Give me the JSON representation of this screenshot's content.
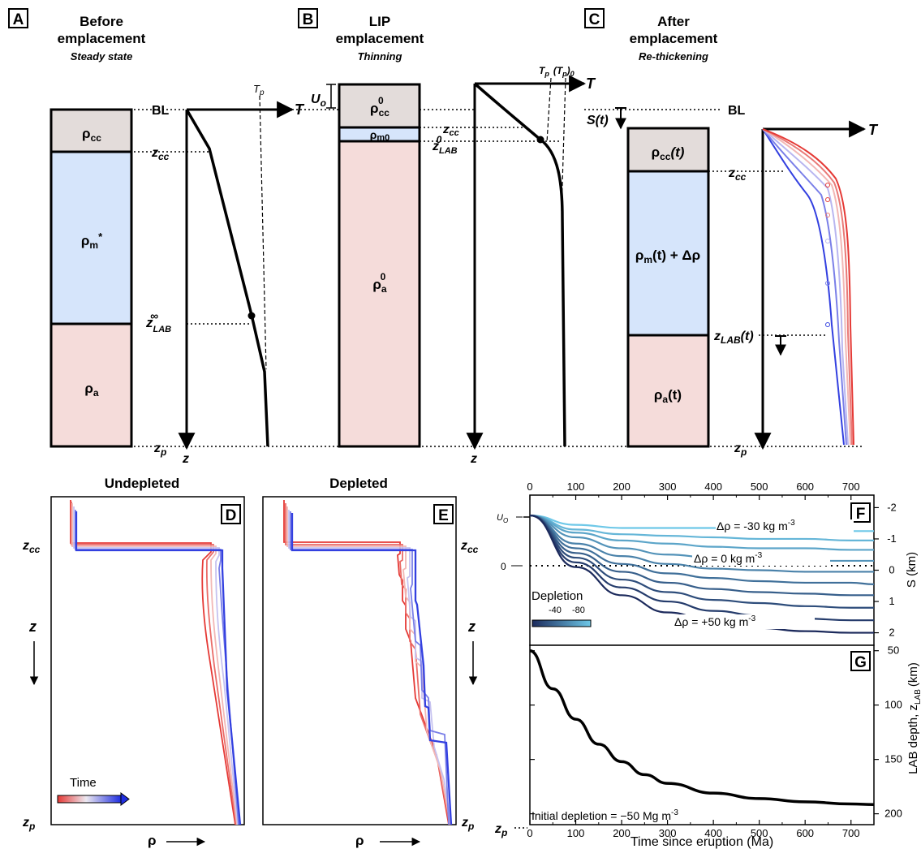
{
  "colors": {
    "crust": "#e3dcda",
    "mantle": "#d6e5fb",
    "asth": "#f5dcda",
    "red": "#e53935",
    "blue": "#3340e0",
    "cyan": "#6ec8e8",
    "navy": "#1c2a5c"
  },
  "panelA": {
    "letter": "A",
    "title1": "Before",
    "title2": "emplacement",
    "subtitle": "Steady state",
    "rho_cc": "ρ",
    "rho_cc_sub": "cc",
    "rho_m": "ρ",
    "rho_m_sub": "m",
    "rho_m_sup": "*",
    "rho_a": "ρ",
    "rho_a_sub": "a",
    "bl": "BL",
    "zcc": "z",
    "zcc_sub": "cc",
    "zlab": "z",
    "zlab_sub": "LAB",
    "zlab_sup": "∞",
    "zp": "z",
    "zp_sub": "p",
    "axis_T": "T",
    "axis_z": "z",
    "tp": "T",
    "tp_sub": "p"
  },
  "panelB": {
    "letter": "B",
    "title1": "LIP",
    "title2": "emplacement",
    "subtitle": "Thinning",
    "uo": "U",
    "uo_sub": "o",
    "rho_cc": "ρ",
    "rho_cc_sub": "cc",
    "rho_cc_sup": "0",
    "rho_m": "ρ",
    "rho_m_sub": "m0",
    "rho_a": "ρ",
    "rho_a_sub": "a",
    "rho_a_sup": "0",
    "zcc": "z",
    "zcc_sub": "cc",
    "zlab": "z",
    "zlab_sub": "LAB",
    "zlab_sup": "0",
    "axis_T": "T",
    "axis_z": "z",
    "tp_label": "T",
    "tp_sub": "p",
    "tp0_label": "(T",
    "tp0_sub": "p",
    "tp0_end": ")",
    "tp0_sub2": "0"
  },
  "panelC": {
    "letter": "C",
    "title1": "After",
    "title2": "emplacement",
    "subtitle": "Re-thickening",
    "bl": "BL",
    "st": "S(t)",
    "rho_cc": "ρ",
    "rho_cc_sub": "cc",
    "rho_cc_arg": "(t)",
    "rho_m": "ρ",
    "rho_m_sub": "m",
    "rho_m_arg": "(t) + Δρ",
    "rho_a": "ρ",
    "rho_a_sub": "a",
    "rho_a_arg": "(t)",
    "zcc": "z",
    "zcc_sub": "cc",
    "zlab": "z",
    "zlab_sub": "LAB",
    "zlab_arg": "(t)",
    "zp": "z",
    "zp_sub": "p",
    "axis_T": "T"
  },
  "panelD": {
    "letter": "D",
    "title": "Undepleted",
    "zcc": "z",
    "zcc_sub": "cc",
    "zlabel": "z",
    "zp": "z",
    "zp_sub": "p",
    "rho": "ρ",
    "time_label": "Time"
  },
  "panelE": {
    "letter": "E",
    "title": "Depleted",
    "zcc": "z",
    "zcc_sub": "cc",
    "zlabel": "z",
    "zp": "z",
    "zp_sub": "p",
    "rho": "ρ"
  },
  "panelF": {
    "letter": "F",
    "ylabel": "S (km)",
    "uo": "U",
    "uo_sub": "O",
    "left_zero": "0",
    "yticks": [
      "-2",
      "-1",
      "0",
      "1",
      "2"
    ],
    "label_top": "Δρ = -30 kg m",
    "label_mid": "Δρ = 0 kg m",
    "label_bot": "Δρ = +50 kg m",
    "unit_sup": "-3",
    "depletion_title": "Depletion",
    "depletion_ticks": [
      "-40",
      "-80"
    ]
  },
  "panelG": {
    "letter": "G",
    "ylabel": "LAB depth, z",
    "ylabel_sub": "LAB",
    "ylabel_unit": "(km)",
    "yticks": [
      "50",
      "100",
      "150",
      "200"
    ],
    "annotation": "Initial depletion = −50 Mg m",
    "annotation_sup": "-3",
    "zp": "z",
    "zp_sub": "p"
  },
  "time_axis": {
    "ticks": [
      "0",
      "100",
      "200",
      "300",
      "400",
      "500",
      "600",
      "700"
    ],
    "xlabel": "Time since eruption (Ma)"
  },
  "chart_data": [
    {
      "type": "line",
      "panel": "F",
      "xlabel": "Time since eruption (Ma)",
      "ylabel": "S (km)",
      "xlim": [
        0,
        750
      ],
      "ylim": [
        -2.4,
        2.4
      ],
      "y_inverted": true,
      "x": [
        0,
        100,
        200,
        300,
        400,
        500,
        600,
        700,
        750
      ],
      "series": [
        {
          "name": "Δρ = -30 kg m-3",
          "values": [
            -1.75,
            -1.45,
            -1.35,
            -1.35,
            -1.35,
            -1.3,
            -1.3,
            -1.25,
            -1.25
          ]
        },
        {
          "values": [
            -1.75,
            -1.3,
            -1.15,
            -1.1,
            -1.05,
            -1.0,
            -1.0,
            -0.95,
            -0.95
          ]
        },
        {
          "values": [
            -1.75,
            -1.2,
            -0.95,
            -0.85,
            -0.75,
            -0.7,
            -0.7,
            -0.65,
            -0.65
          ]
        },
        {
          "values": [
            -1.75,
            -1.05,
            -0.7,
            -0.5,
            -0.4,
            -0.35,
            -0.3,
            -0.3,
            -0.3
          ]
        },
        {
          "name": "Δρ = 0 kg m-3",
          "values": [
            -1.75,
            -0.85,
            -0.45,
            -0.2,
            -0.05,
            0.0,
            0.05,
            0.05,
            0.05
          ]
        },
        {
          "values": [
            -1.75,
            -0.7,
            -0.2,
            0.1,
            0.25,
            0.35,
            0.4,
            0.4,
            0.45
          ]
        },
        {
          "values": [
            -1.75,
            -0.55,
            0.05,
            0.4,
            0.6,
            0.7,
            0.75,
            0.8,
            0.8
          ]
        },
        {
          "values": [
            -1.75,
            -0.4,
            0.3,
            0.7,
            0.95,
            1.05,
            1.15,
            1.2,
            1.2
          ]
        },
        {
          "values": [
            -1.75,
            -0.25,
            0.55,
            1.0,
            1.3,
            1.45,
            1.55,
            1.6,
            1.6
          ]
        },
        {
          "name": "Δρ = +50 kg m-3",
          "values": [
            -1.75,
            -0.1,
            0.8,
            1.35,
            1.65,
            1.85,
            1.95,
            2.0,
            2.0
          ]
        }
      ]
    },
    {
      "type": "line",
      "panel": "G",
      "xlabel": "Time since eruption (Ma)",
      "ylabel": "LAB depth, z LAB (km)",
      "xlim": [
        0,
        750
      ],
      "ylim": [
        45,
        210
      ],
      "y_inverted": true,
      "x": [
        0,
        50,
        100,
        150,
        200,
        250,
        300,
        400,
        500,
        600,
        700,
        750
      ],
      "series": [
        {
          "values": [
            50,
            85,
            113,
            136,
            152,
            164,
            172,
            181,
            186,
            189,
            191,
            191.5
          ]
        }
      ]
    }
  ]
}
